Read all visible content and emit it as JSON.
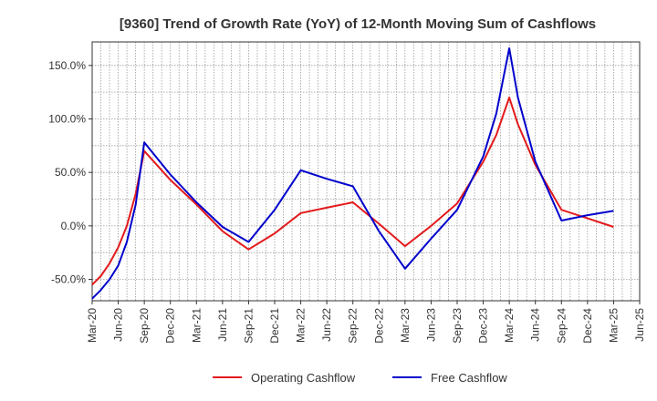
{
  "chart_data": {
    "type": "line",
    "title": "[9360]  Trend of Growth Rate (YoY) of 12-Month Moving Sum of Cashflows",
    "xlabel": "",
    "ylabel": "",
    "x_tick_labels": [
      "Mar-20",
      "Jun-20",
      "Sep-20",
      "Dec-20",
      "Mar-21",
      "Jun-21",
      "Sep-21",
      "Dec-21",
      "Mar-22",
      "Jun-22",
      "Sep-22",
      "Dec-22",
      "Mar-23",
      "Jun-23",
      "Sep-23",
      "Dec-23",
      "Mar-24",
      "Jun-24",
      "Sep-24",
      "Dec-24",
      "Mar-25",
      "Jun-25"
    ],
    "y_tick_labels": [
      "-50.0%",
      "0.0%",
      "50.0%",
      "100.0%",
      "150.0%"
    ],
    "y_ticks": [
      -50,
      0,
      50,
      100,
      150
    ],
    "ylim": [
      -70,
      172
    ],
    "grid": true,
    "legend_position": "bottom-center",
    "series": [
      {
        "name": "Operating Cashflow",
        "color": "#e31a1c",
        "points": [
          [
            0,
            -55
          ],
          [
            0.33,
            -47
          ],
          [
            0.67,
            -35
          ],
          [
            1.0,
            -20
          ],
          [
            1.33,
            0
          ],
          [
            1.67,
            30
          ],
          [
            2.0,
            70
          ],
          [
            3.0,
            43
          ],
          [
            4.0,
            20
          ],
          [
            5.0,
            -5
          ],
          [
            6.0,
            -22
          ],
          [
            7.0,
            -7
          ],
          [
            8.0,
            12
          ],
          [
            9.0,
            17
          ],
          [
            10.0,
            22
          ],
          [
            11.0,
            2
          ],
          [
            12.0,
            -19
          ],
          [
            13.0,
            0
          ],
          [
            14.0,
            21
          ],
          [
            15.0,
            60
          ],
          [
            15.5,
            85
          ],
          [
            16.0,
            120
          ],
          [
            16.33,
            95
          ],
          [
            17.0,
            57
          ],
          [
            18.0,
            15
          ],
          [
            19.0,
            7
          ],
          [
            20.0,
            -1
          ]
        ]
      },
      {
        "name": "Free Cashflow",
        "color": "#0000cc",
        "points": [
          [
            0,
            -68
          ],
          [
            0.33,
            -60
          ],
          [
            0.67,
            -50
          ],
          [
            1.0,
            -37
          ],
          [
            1.33,
            -15
          ],
          [
            1.67,
            20
          ],
          [
            2.0,
            78
          ],
          [
            3.0,
            48
          ],
          [
            4.0,
            22
          ],
          [
            5.0,
            -1
          ],
          [
            6.0,
            -15
          ],
          [
            7.0,
            15
          ],
          [
            8.0,
            52
          ],
          [
            9.0,
            44
          ],
          [
            10.0,
            37
          ],
          [
            11.0,
            -5
          ],
          [
            12.0,
            -40
          ],
          [
            13.0,
            -12
          ],
          [
            14.0,
            15
          ],
          [
            15.0,
            65
          ],
          [
            15.5,
            105
          ],
          [
            16.0,
            166
          ],
          [
            16.33,
            120
          ],
          [
            17.0,
            60
          ],
          [
            18.0,
            5
          ],
          [
            19.0,
            10
          ],
          [
            20.0,
            14
          ]
        ]
      }
    ]
  }
}
